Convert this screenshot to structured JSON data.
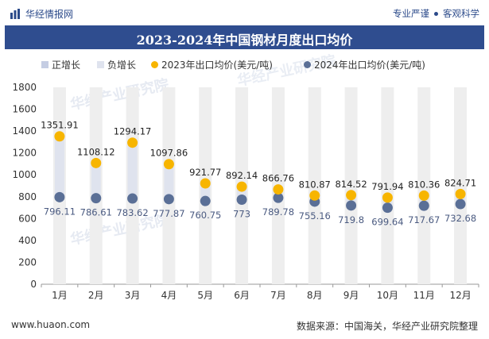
{
  "header": {
    "brand": "华经情报网",
    "tagline_left": "专业严谨",
    "tagline_right": "客观科学"
  },
  "footer": {
    "url": "www.huaon.com",
    "source": "数据来源：中国海关，华经产业研究院整理"
  },
  "watermark": "华经产业研究院",
  "colors": {
    "title_bar": "#2f4d8f",
    "pos_bar": "#c5cde3",
    "neg_bar": "#dfe3ee",
    "series_2023": "#f7b500",
    "series_2024": "#5a6f96",
    "column_bg": "#eeeeee"
  },
  "chart_data": {
    "type": "line",
    "title": "2023-2024年中国钢材月度出口均价",
    "categories": [
      "1月",
      "2月",
      "3月",
      "4月",
      "5月",
      "6月",
      "7月",
      "8月",
      "9月",
      "10月",
      "11月",
      "12月"
    ],
    "ylim": [
      0,
      1800
    ],
    "yticks": [
      0,
      200,
      400,
      600,
      800,
      1000,
      1200,
      1400,
      1600,
      1800
    ],
    "legend_position": "top",
    "legend": [
      {
        "label": "正增长",
        "marker": "square"
      },
      {
        "label": "负增长",
        "marker": "square"
      },
      {
        "label": "2023年出口均价(美元/吨)",
        "marker": "circle"
      },
      {
        "label": "2024年出口均价(美元/吨)",
        "marker": "circle"
      }
    ],
    "series": [
      {
        "name": "2023年出口均价(美元/吨)",
        "values": [
          1351.91,
          1108.12,
          1294.17,
          1097.86,
          921.77,
          892.14,
          866.76,
          810.87,
          814.52,
          791.94,
          810.36,
          824.71
        ],
        "labels": [
          "1351.91",
          "1108.12",
          "1294.17",
          "1097.86",
          "921.77",
          "892.14",
          "866.76",
          "810.87",
          "814.52",
          "791.94",
          "810.36",
          "824.71"
        ]
      },
      {
        "name": "2024年出口均价(美元/吨)",
        "values": [
          796.11,
          786.61,
          783.62,
          777.87,
          760.75,
          773,
          789.78,
          755.16,
          719.8,
          699.64,
          717.67,
          732.68
        ],
        "labels": [
          "796.11",
          "786.61",
          "783.62",
          "777.87",
          "760.75",
          "773",
          "789.78",
          "755.16",
          "719.8",
          "699.64",
          "717.67",
          "732.68"
        ]
      }
    ]
  }
}
